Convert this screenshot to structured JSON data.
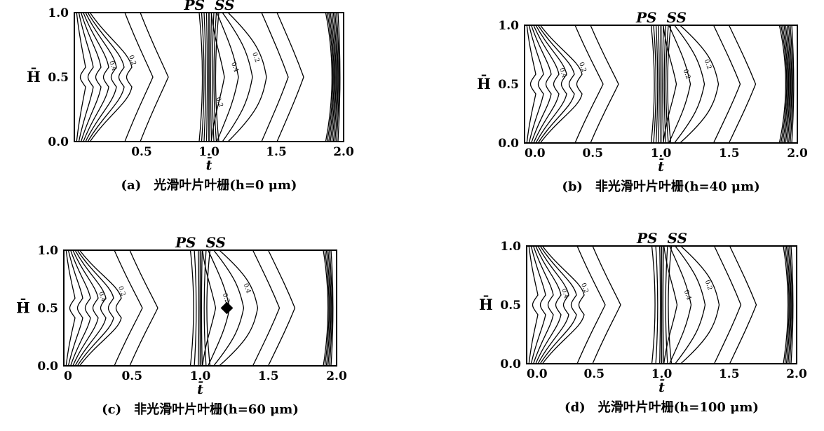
{
  "chart_data": [
    {
      "type": "contour",
      "id": "a",
      "caption": "(a)　光滑叶片叶栅(h=0 μm)",
      "xlabel": "t̄",
      "ylabel": "H̄",
      "xlim": [
        0,
        2.0
      ],
      "ylim": [
        0,
        1.0
      ],
      "x_ticks": [
        "0.5",
        "1.0",
        "1.5",
        "2.0"
      ],
      "y_ticks": [
        "1.0",
        "0.5",
        "0.0"
      ],
      "annotation_top": [
        "PS",
        "SS"
      ],
      "contour_labels": [
        "0.4",
        "0.2",
        "0.2",
        "0.4",
        "0.2"
      ]
    },
    {
      "type": "contour",
      "id": "b",
      "caption": "(b)　非光滑叶片叶栅(h=40 μm)",
      "xlabel": "t̄",
      "ylabel": "H̄",
      "xlim": [
        0,
        2.0
      ],
      "ylim": [
        0,
        1.0
      ],
      "x_ticks": [
        "0.0",
        "0.5",
        "1.0",
        "1.5",
        "2.0"
      ],
      "y_ticks": [
        "1.0",
        "0.5",
        "0.0"
      ],
      "annotation_top": [
        "PS",
        "SS"
      ],
      "contour_labels": [
        "0.4",
        "0.2",
        "0.2",
        "0.2"
      ]
    },
    {
      "type": "contour",
      "id": "c",
      "caption": "(c)　非光滑叶片叶栅(h=60 μm)",
      "xlabel": "t̄",
      "ylabel": "H̄",
      "xlim": [
        0,
        2.0
      ],
      "ylim": [
        0,
        1.0
      ],
      "x_ticks": [
        "0",
        "0.5",
        "1.0",
        "1.5",
        "2.0"
      ],
      "y_ticks": [
        "1.0",
        "0.5",
        "0.0"
      ],
      "annotation_top": [
        "PS",
        "SS"
      ],
      "contour_labels": [
        "0.4",
        "0.2",
        "0.4",
        "0.2"
      ]
    },
    {
      "type": "contour",
      "id": "d",
      "caption": "(d)　光滑叶片叶栅(h=100 μm)",
      "xlabel": "t̄",
      "ylabel": "H̄",
      "xlim": [
        0,
        2.0
      ],
      "ylim": [
        0,
        1.0
      ],
      "x_ticks": [
        "0.0",
        "0.5",
        "1.0",
        "1.5",
        "2.0"
      ],
      "y_ticks": [
        "1.0",
        "0.5",
        "0.0"
      ],
      "annotation_top": [
        "PS",
        "SS"
      ],
      "contour_labels": [
        "0.4",
        "0.2",
        "0.2",
        "0.4"
      ]
    }
  ]
}
